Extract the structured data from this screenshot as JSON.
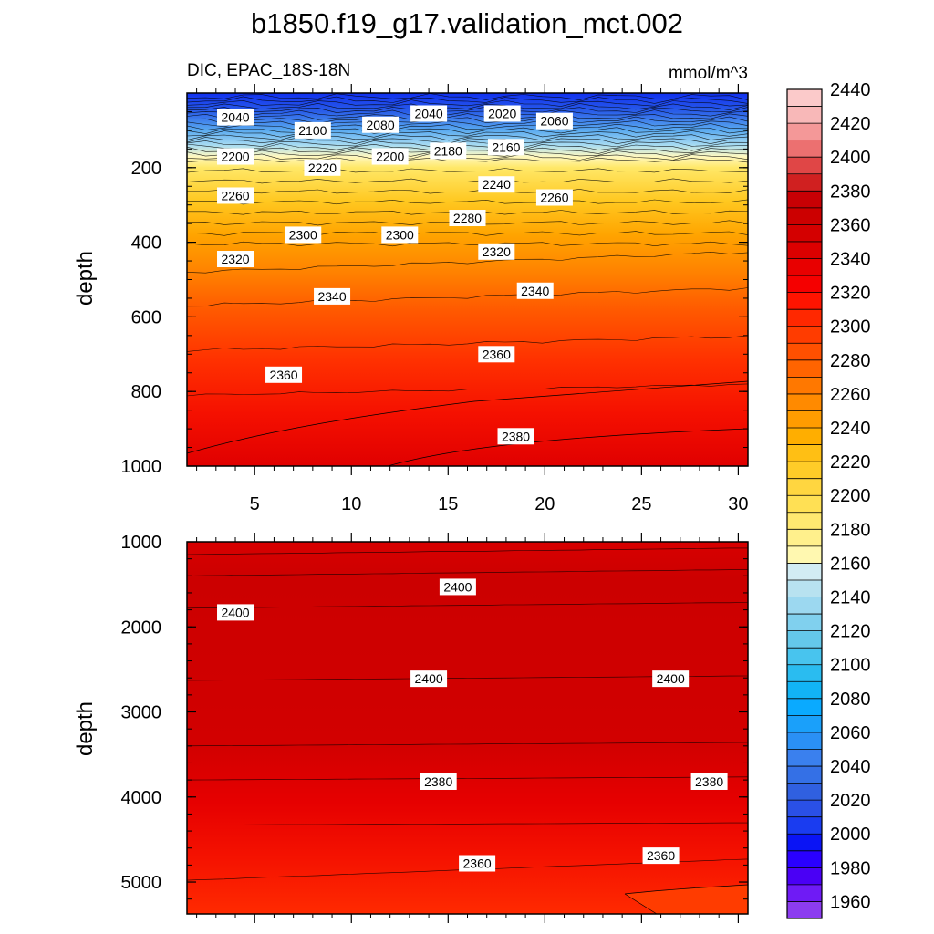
{
  "chart_data": {
    "type": "contour",
    "title": "b1850.f19_g17.validation_mct.002",
    "subtitle_left": "DIC, EPAC_18S-18N",
    "subtitle_right": "mmol/m^3",
    "x_tick_labels": [
      "5",
      "10",
      "15",
      "20",
      "25",
      "30"
    ],
    "x_ticks": [
      5,
      10,
      15,
      20,
      25,
      30
    ],
    "xlim": [
      1.5,
      30.5
    ],
    "top_panel": {
      "ylabel": "depth",
      "ylim": [
        0,
        1000
      ],
      "y_ticks": [
        200,
        400,
        600,
        800,
        1000
      ],
      "y_tick_labels": [
        "200",
        "400",
        "600",
        "800",
        "1000"
      ],
      "contour_labels": [
        {
          "text": "2040",
          "x": 4,
          "y": 65
        },
        {
          "text": "2100",
          "x": 8,
          "y": 100
        },
        {
          "text": "2080",
          "x": 11.5,
          "y": 85
        },
        {
          "text": "2040",
          "x": 14,
          "y": 55
        },
        {
          "text": "2020",
          "x": 17.8,
          "y": 55
        },
        {
          "text": "2060",
          "x": 20.5,
          "y": 75
        },
        {
          "text": "2200",
          "x": 4,
          "y": 170
        },
        {
          "text": "2220",
          "x": 8.5,
          "y": 200
        },
        {
          "text": "2200",
          "x": 12,
          "y": 170
        },
        {
          "text": "2180",
          "x": 15,
          "y": 155
        },
        {
          "text": "2160",
          "x": 18,
          "y": 145
        },
        {
          "text": "2240",
          "x": 17.5,
          "y": 245
        },
        {
          "text": "2260",
          "x": 4,
          "y": 275
        },
        {
          "text": "2260",
          "x": 20.5,
          "y": 280
        },
        {
          "text": "2280",
          "x": 16,
          "y": 335
        },
        {
          "text": "2300",
          "x": 7.5,
          "y": 380
        },
        {
          "text": "2300",
          "x": 12.5,
          "y": 380
        },
        {
          "text": "2320",
          "x": 4,
          "y": 445
        },
        {
          "text": "2320",
          "x": 17.5,
          "y": 425
        },
        {
          "text": "2340",
          "x": 9,
          "y": 545
        },
        {
          "text": "2340",
          "x": 19.5,
          "y": 530
        },
        {
          "text": "2360",
          "x": 6.5,
          "y": 755
        },
        {
          "text": "2360",
          "x": 17.5,
          "y": 700
        },
        {
          "text": "2380",
          "x": 18.5,
          "y": 920
        }
      ]
    },
    "bottom_panel": {
      "ylabel": "depth",
      "ylim": [
        1000,
        5375
      ],
      "y_ticks": [
        1000,
        2000,
        3000,
        4000,
        5000
      ],
      "y_tick_labels": [
        "1000",
        "2000",
        "3000",
        "4000",
        "5000"
      ],
      "contour_labels": [
        {
          "text": "2400",
          "x": 4,
          "y": 1830
        },
        {
          "text": "2400",
          "x": 15.5,
          "y": 1530
        },
        {
          "text": "2400",
          "x": 14,
          "y": 2610
        },
        {
          "text": "2400",
          "x": 26.5,
          "y": 2610
        },
        {
          "text": "2380",
          "x": 14.5,
          "y": 3820
        },
        {
          "text": "2380",
          "x": 28.5,
          "y": 3820
        },
        {
          "text": "2360",
          "x": 16.5,
          "y": 4780
        },
        {
          "text": "2360",
          "x": 26,
          "y": 4690
        }
      ]
    },
    "colorbar": {
      "levels": [
        1960,
        1970,
        1980,
        1990,
        2000,
        2010,
        2020,
        2030,
        2040,
        2050,
        2060,
        2070,
        2080,
        2090,
        2100,
        2110,
        2120,
        2130,
        2140,
        2150,
        2160,
        2170,
        2180,
        2190,
        2200,
        2210,
        2220,
        2230,
        2240,
        2250,
        2260,
        2270,
        2280,
        2290,
        2300,
        2310,
        2320,
        2330,
        2340,
        2350,
        2360,
        2370,
        2380,
        2390,
        2400,
        2410,
        2420,
        2430,
        2440,
        2450
      ],
      "labels": [
        "1960",
        "1980",
        "2000",
        "2020",
        "2040",
        "2060",
        "2080",
        "2100",
        "2120",
        "2140",
        "2160",
        "2180",
        "2200",
        "2220",
        "2240",
        "2260",
        "2280",
        "2300",
        "2320",
        "2340",
        "2360",
        "2380",
        "2400",
        "2420",
        "2440"
      ],
      "colors": [
        "#8c3cf0",
        "#6f1bf5",
        "#4a00f5",
        "#2a00ff",
        "#0a14f5",
        "#1a3cf0",
        "#2a50e6",
        "#3060e0",
        "#3470e6",
        "#3a80ee",
        "#2a90f5",
        "#1aa0fa",
        "#0aaaff",
        "#12b4f5",
        "#2abcf0",
        "#48c4ee",
        "#64c8ea",
        "#80d0ee",
        "#9cd8f0",
        "#b8e2f0",
        "#d2ecf4",
        "#fff8b0",
        "#fff08c",
        "#ffe870",
        "#ffe054",
        "#ffd640",
        "#ffcc28",
        "#ffbf14",
        "#ffae00",
        "#ff9c00",
        "#ff8a00",
        "#ff7800",
        "#ff6400",
        "#ff5000",
        "#ff3c00",
        "#ff2800",
        "#ff1400",
        "#f50000",
        "#e80000",
        "#dc0000",
        "#d40000",
        "#cc0000",
        "#c80004",
        "#d02020",
        "#e04646",
        "#ec7070",
        "#f49898",
        "#f8b8b8",
        "#fbcaca"
      ]
    }
  }
}
